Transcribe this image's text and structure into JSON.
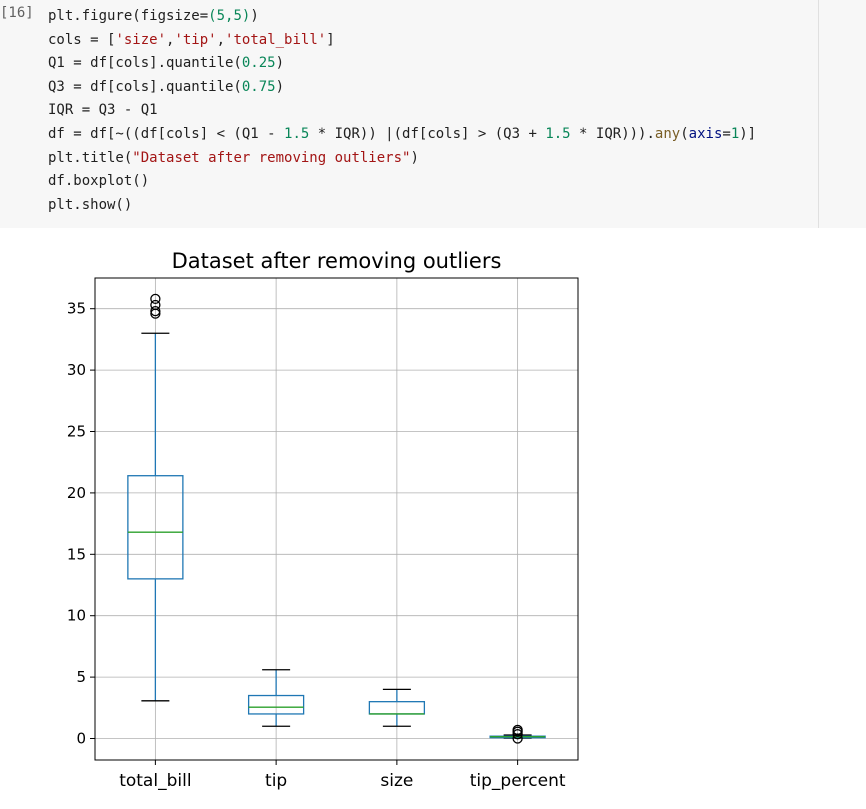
{
  "cell": {
    "execution_count": "[16]",
    "lines": [
      [
        {
          "t": "plt.figure(figsize=",
          "c": ""
        },
        {
          "t": "(5,5)",
          "c": "num"
        },
        {
          "t": ")",
          "c": ""
        }
      ],
      [
        {
          "t": "cols = [",
          "c": ""
        },
        {
          "t": "'size'",
          "c": "str"
        },
        {
          "t": ",",
          "c": ""
        },
        {
          "t": "'tip'",
          "c": "str"
        },
        {
          "t": ",",
          "c": ""
        },
        {
          "t": "'total_bill'",
          "c": "str"
        },
        {
          "t": "]",
          "c": ""
        }
      ],
      [
        {
          "t": "Q1 = df[cols].quantile(",
          "c": ""
        },
        {
          "t": "0.25",
          "c": "num"
        },
        {
          "t": ")",
          "c": ""
        }
      ],
      [
        {
          "t": "Q3 = df[cols].quantile(",
          "c": ""
        },
        {
          "t": "0.75",
          "c": "num"
        },
        {
          "t": ")",
          "c": ""
        }
      ],
      [
        {
          "t": "IQR = Q3 - Q1",
          "c": ""
        }
      ],
      [
        {
          "t": "df = df[~((df[cols] < (Q1 - ",
          "c": ""
        },
        {
          "t": "1.5",
          "c": "num"
        },
        {
          "t": " * IQR)) |(df[cols] > (Q3 + ",
          "c": ""
        },
        {
          "t": "1.5",
          "c": "num"
        },
        {
          "t": " * IQR))).",
          "c": ""
        },
        {
          "t": "any",
          "c": "fn"
        },
        {
          "t": "(",
          "c": ""
        },
        {
          "t": "axis",
          "c": "kw"
        },
        {
          "t": "=",
          "c": ""
        },
        {
          "t": "1",
          "c": "num"
        },
        {
          "t": ")]",
          "c": ""
        }
      ],
      [
        {
          "t": "plt.title(",
          "c": ""
        },
        {
          "t": "\"Dataset after removing outliers\"",
          "c": "str"
        },
        {
          "t": ")",
          "c": ""
        }
      ],
      [
        {
          "t": "df.boxplot()",
          "c": ""
        }
      ],
      [
        {
          "t": "plt.show()",
          "c": ""
        }
      ]
    ]
  },
  "chart_data": {
    "type": "boxplot",
    "title": "Dataset after removing outliers",
    "categories": [
      "total_bill",
      "tip",
      "size",
      "tip_percent"
    ],
    "yticks": [
      0,
      5,
      10,
      15,
      20,
      25,
      30,
      35
    ],
    "ylim": [
      -1.75,
      37.5
    ],
    "grid": true,
    "colors": {
      "box": "#1f77b4",
      "median": "#2ca02c",
      "grid": "#b0b0b0",
      "axes": "#000000"
    },
    "boxes": [
      {
        "name": "total_bill",
        "whislo": 3.07,
        "q1": 13.0,
        "med": 16.8,
        "q3": 21.4,
        "whishi": 33.0,
        "fliers": [
          34.6,
          34.8,
          35.3,
          35.8
        ]
      },
      {
        "name": "tip",
        "whislo": 1.0,
        "q1": 2.0,
        "med": 2.55,
        "q3": 3.5,
        "whishi": 5.6,
        "fliers": []
      },
      {
        "name": "size",
        "whislo": 1.0,
        "q1": 2.0,
        "med": 2.0,
        "q3": 3.0,
        "whishi": 4.0,
        "fliers": []
      },
      {
        "name": "tip_percent",
        "whislo": 0.03,
        "q1": 0.13,
        "med": 0.15,
        "q3": 0.19,
        "whishi": 0.28,
        "fliers": [
          0.0,
          0.35,
          0.55,
          0.7
        ]
      }
    ]
  }
}
